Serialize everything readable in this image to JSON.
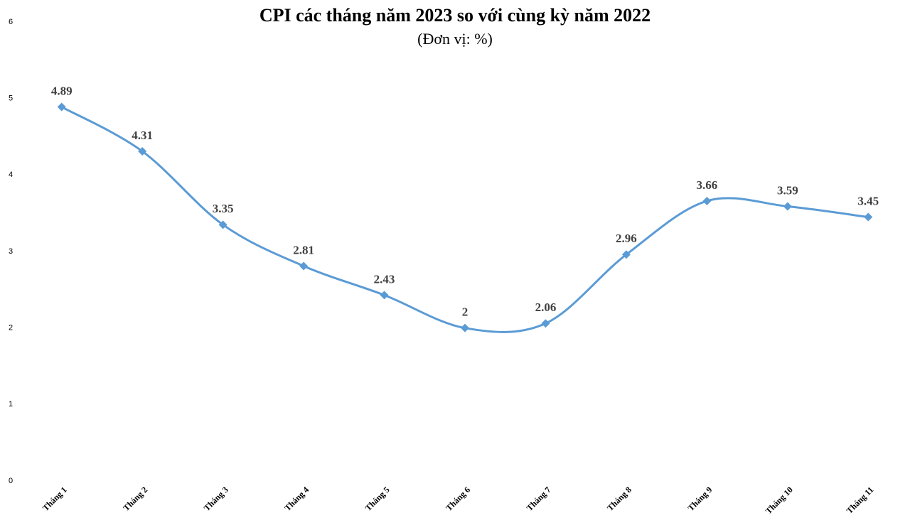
{
  "chart_data": {
    "type": "line",
    "title": "CPI các tháng năm 2023 so với cùng kỳ năm 2022",
    "subtitle": "(Đơn vị: %)",
    "categories": [
      "Tháng 1",
      "Tháng 2",
      "Tháng 3",
      "Tháng 4",
      "Tháng 5",
      "Tháng 6",
      "Tháng 7",
      "Tháng 8",
      "Tháng 9",
      "Tháng 10",
      "Tháng 11"
    ],
    "values": [
      4.89,
      4.31,
      3.35,
      2.81,
      2.43,
      2,
      2.06,
      2.96,
      3.66,
      3.59,
      3.45
    ],
    "color": "#5b9bd5",
    "smooth": true,
    "ylim": [
      0,
      6
    ],
    "yticks": [
      0,
      1,
      2,
      3,
      4,
      5,
      6
    ],
    "grid": false
  }
}
